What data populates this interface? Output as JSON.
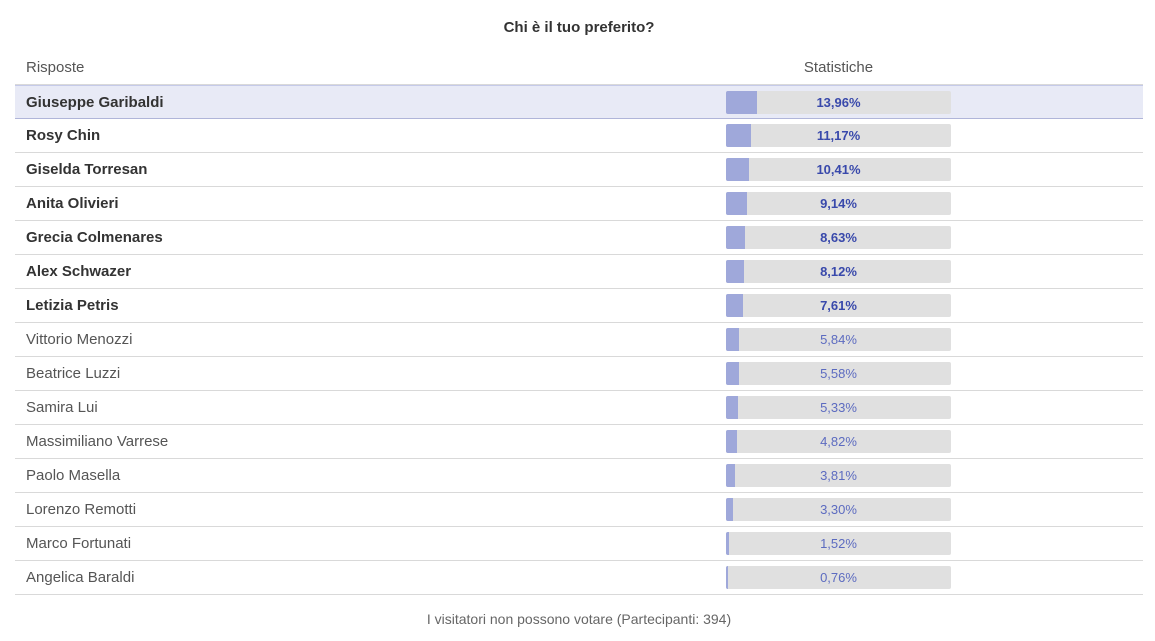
{
  "poll": {
    "title": "Chi è il tuo preferito?",
    "header_answers": "Risposte",
    "header_stats": "Statistiche",
    "footer": "I visitatori non possono votare (Partecipanti: 394)",
    "accent_color": "#9fa8da",
    "selected_row_color": "#e8eaf6"
  },
  "chart_data": {
    "type": "bar",
    "categories": [
      "Giuseppe Garibaldi",
      "Rosy Chin",
      "Giselda Torresan",
      "Anita Olivieri",
      "Grecia Colmenares",
      "Alex Schwazer",
      "Letizia Petris",
      "Vittorio Menozzi",
      "Beatrice Luzzi",
      "Samira Lui",
      "Massimiliano Varrese",
      "Paolo Masella",
      "Lorenzo Remotti",
      "Marco Fortunati",
      "Angelica Baraldi"
    ],
    "values": [
      13.96,
      11.17,
      10.41,
      9.14,
      8.63,
      8.12,
      7.61,
      5.84,
      5.58,
      5.33,
      4.82,
      3.81,
      3.3,
      1.52,
      0.76
    ],
    "labels": [
      "13,96%",
      "11,17%",
      "10,41%",
      "9,14%",
      "8,63%",
      "8,12%",
      "7,61%",
      "5,84%",
      "5,58%",
      "5,33%",
      "4,82%",
      "3,81%",
      "3,30%",
      "1,52%",
      "0,76%"
    ],
    "bold": [
      true,
      true,
      true,
      true,
      true,
      true,
      true,
      false,
      false,
      false,
      false,
      false,
      false,
      false,
      false
    ],
    "selected_index": 0,
    "xlim": [
      0,
      100
    ]
  }
}
